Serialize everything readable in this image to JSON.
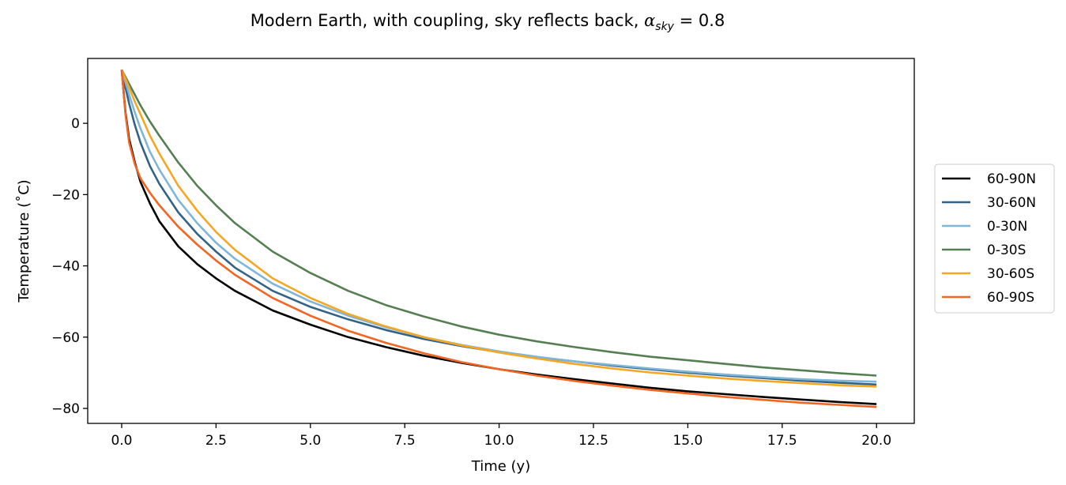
{
  "chart_data": {
    "type": "line",
    "title_prefix": "Modern Earth, with coupling, sky reflects back, ",
    "title_symbol": "α",
    "title_subscript": "sky",
    "title_suffix": " = 0.8",
    "xlabel": "Time (y)",
    "ylabel": "Temperature (˚C)",
    "xlim": [
      -0.9,
      21.0
    ],
    "ylim": [
      -84.2,
      18.2
    ],
    "xticks": [
      0.0,
      2.5,
      5.0,
      7.5,
      10.0,
      12.5,
      15.0,
      17.5,
      20.0
    ],
    "xtick_labels": [
      "0.0",
      "2.5",
      "5.0",
      "7.5",
      "10.0",
      "12.5",
      "15.0",
      "17.5",
      "20.0"
    ],
    "yticks": [
      0,
      -20,
      -40,
      -60,
      -80
    ],
    "ytick_labels": [
      "0",
      "−20",
      "−40",
      "−60",
      "−80"
    ],
    "grid": false,
    "legend_position": "outside-right",
    "x": [
      0,
      0.1,
      0.2,
      0.35,
      0.5,
      0.75,
      1,
      1.5,
      2,
      2.5,
      3,
      4,
      5,
      6,
      7,
      8,
      9,
      10,
      11,
      12,
      13,
      14,
      15,
      16,
      17,
      18,
      19,
      20
    ],
    "series": [
      {
        "name": "60-90N",
        "color": "#000000",
        "values": [
          15,
          3,
          -4.5,
          -11,
          -16.5,
          -22.5,
          -27.5,
          -34.5,
          -39.5,
          -43.5,
          -47,
          -52.5,
          -56.5,
          -60,
          -62.8,
          -65.2,
          -67.2,
          -69,
          -70.5,
          -71.8,
          -73,
          -74.2,
          -75.2,
          -76,
          -76.8,
          -77.5,
          -78.2,
          -78.8
        ]
      },
      {
        "name": "30-60N",
        "color": "#336287",
        "values": [
          15,
          10,
          5.5,
          -0.5,
          -5.5,
          -12,
          -17,
          -25,
          -31,
          -36,
          -40.5,
          -47,
          -51.5,
          -55,
          -58,
          -60.5,
          -62.5,
          -64.2,
          -65.6,
          -66.8,
          -68,
          -69,
          -70,
          -70.8,
          -71.5,
          -72.2,
          -72.8,
          -73.3
        ]
      },
      {
        "name": "0-30N",
        "color": "#7eb6d9",
        "values": [
          15,
          11.5,
          8,
          3,
          -1.5,
          -8,
          -13,
          -21.5,
          -28,
          -33.5,
          -38,
          -45,
          -50,
          -54,
          -57.2,
          -60,
          -62.2,
          -64,
          -65.5,
          -66.8,
          -67.8,
          -68.8,
          -69.7,
          -70.5,
          -71.2,
          -71.8,
          -72.2,
          -72.5
        ]
      },
      {
        "name": "0-30S",
        "color": "#557f52",
        "values": [
          15,
          13,
          11,
          8,
          5,
          0.5,
          -3.5,
          -11,
          -17.5,
          -23,
          -28,
          -36,
          -42,
          -47,
          -51,
          -54.2,
          -57,
          -59.3,
          -61.2,
          -62.8,
          -64.2,
          -65.5,
          -66.5,
          -67.5,
          -68.5,
          -69.3,
          -70.1,
          -70.8
        ]
      },
      {
        "name": "30-60S",
        "color": "#f5a623",
        "values": [
          15,
          12.5,
          10,
          6,
          2.5,
          -3.5,
          -8.5,
          -17.5,
          -24.5,
          -30.5,
          -35.5,
          -43.5,
          -49,
          -53.5,
          -57,
          -60,
          -62.3,
          -64.3,
          -66,
          -67.5,
          -68.8,
          -69.9,
          -70.8,
          -71.6,
          -72.3,
          -72.9,
          -73.5,
          -73.9
        ]
      },
      {
        "name": "60-90S",
        "color": "#f26522",
        "values": [
          15,
          2.5,
          -5.5,
          -11.5,
          -15.5,
          -19.5,
          -23,
          -29,
          -34,
          -38.5,
          -42.5,
          -49,
          -54,
          -58.2,
          -61.6,
          -64.5,
          -67,
          -69,
          -70.8,
          -72.3,
          -73.6,
          -74.8,
          -75.8,
          -76.8,
          -77.6,
          -78.4,
          -79,
          -79.6
        ]
      }
    ]
  }
}
